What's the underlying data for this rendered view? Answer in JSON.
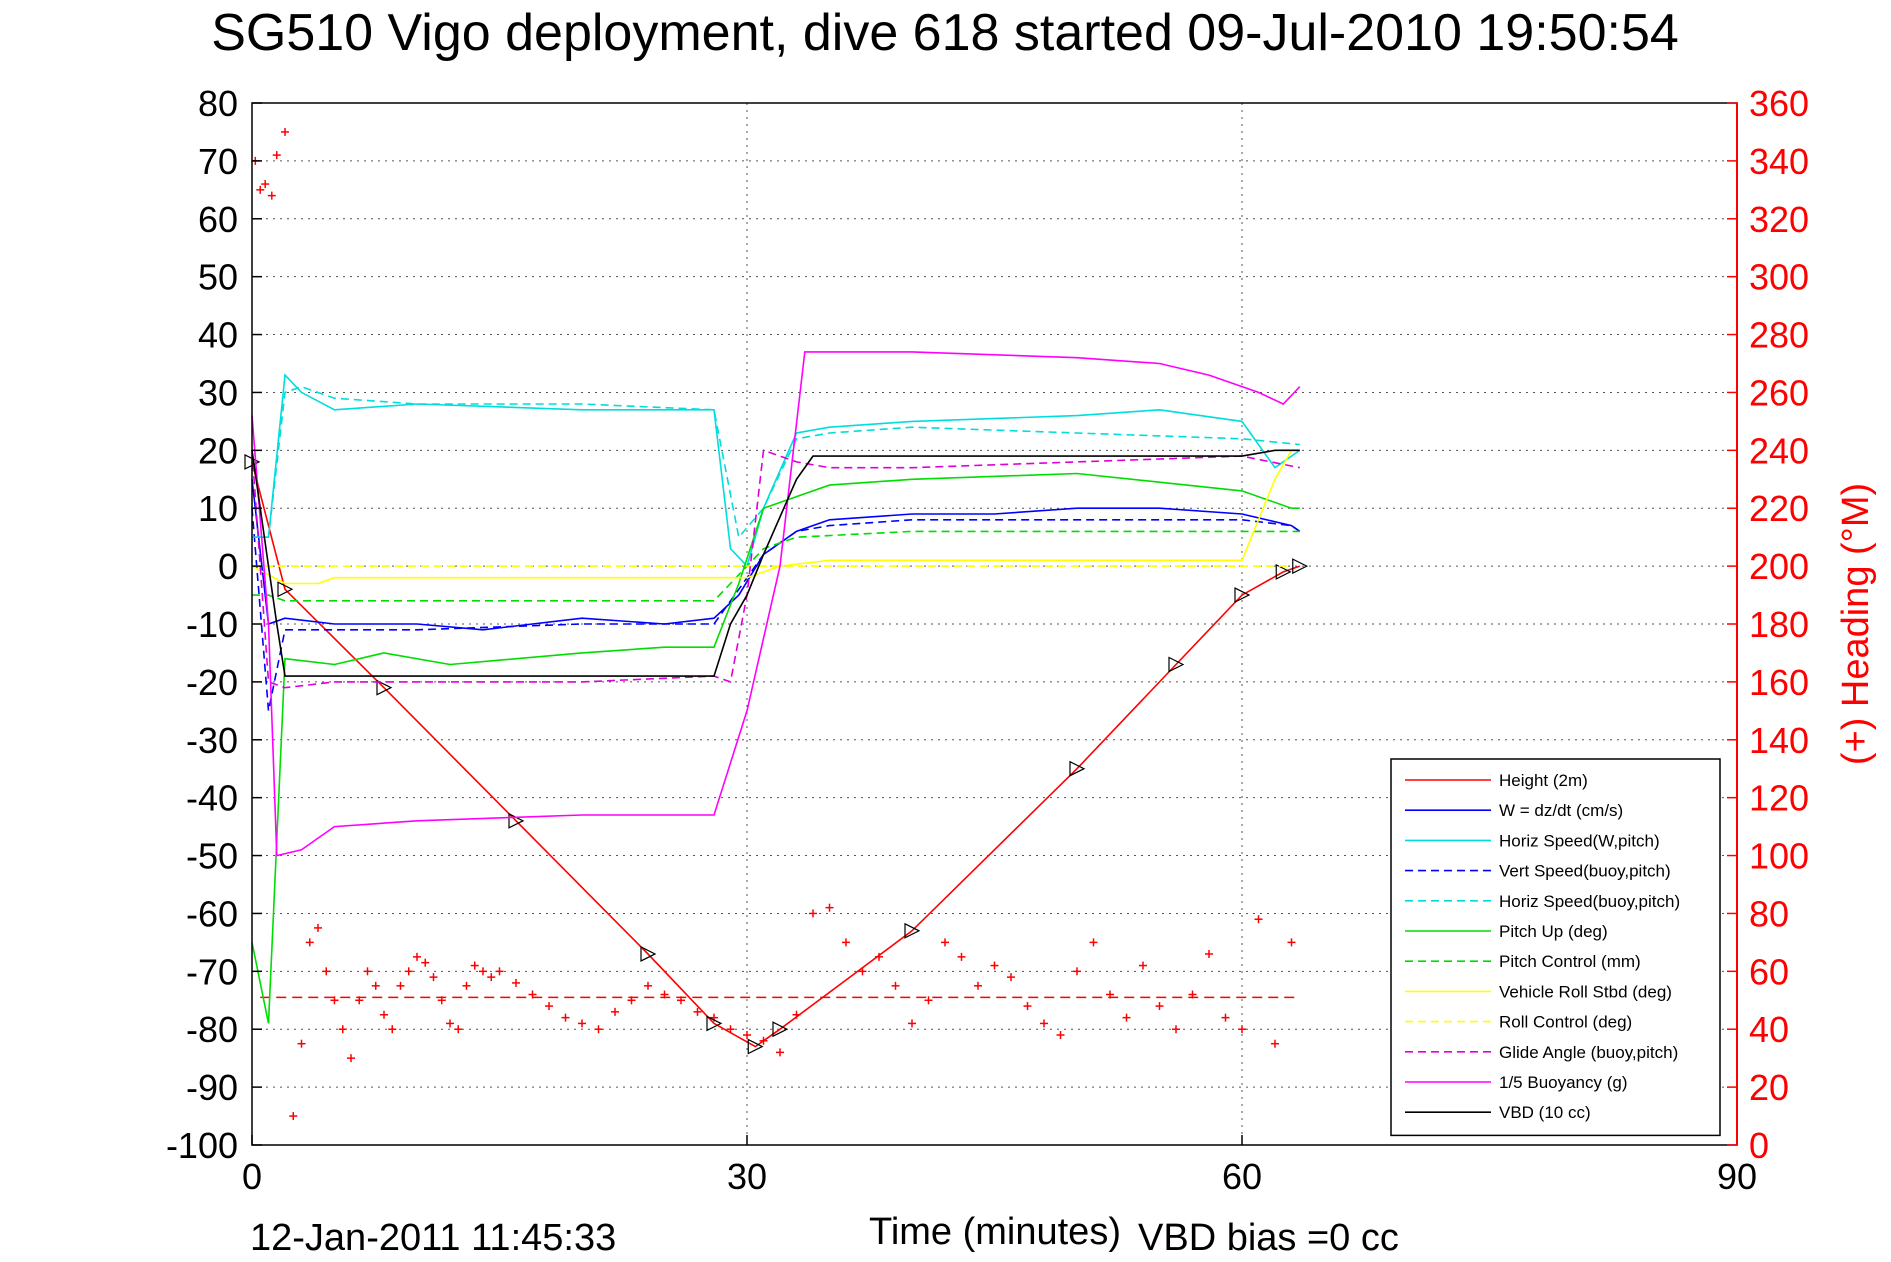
{
  "chart_data": {
    "type": "line",
    "title": "SG510 Vigo deployment, dive 618 started 09-Jul-2010 19:50:54",
    "xlabel": "Time (minutes)",
    "ylabel": "",
    "y2label": "(+) Heading (°M)",
    "xlim": [
      0,
      90
    ],
    "ylim": [
      -100,
      80
    ],
    "y2lim": [
      0,
      360
    ],
    "xticks": [
      "0",
      "30",
      "60",
      "90"
    ],
    "yticks": [
      "80",
      "70",
      "60",
      "50",
      "40",
      "30",
      "20",
      "10",
      "0",
      "-10",
      "-20",
      "-30",
      "-40",
      "-50",
      "-60",
      "-70",
      "-80",
      "-90",
      "-100"
    ],
    "y2ticks": [
      "360",
      "340",
      "320",
      "300",
      "280",
      "260",
      "240",
      "220",
      "200",
      "180",
      "160",
      "140",
      "120",
      "100",
      "80",
      "60",
      "40",
      "20",
      "0"
    ],
    "grid": true,
    "legend_position": "bottom-right",
    "footer_date": "12-Jan-2011 11:45:33",
    "footer_bias": "VBD bias =0 cc",
    "series": [
      {
        "name": "Height (2m)",
        "color": "#ff0000",
        "style": "solid",
        "x": [
          0,
          2,
          8,
          16,
          24,
          28,
          30.5,
          32,
          40,
          50,
          56,
          60,
          62.5,
          63.5
        ],
        "y": [
          18,
          -4,
          -21,
          -44,
          -67,
          -79,
          -83,
          -80,
          -63,
          -35,
          -17,
          -5,
          -1,
          0
        ]
      },
      {
        "name": "W = dz/dt (cm/s)",
        "color": "#0000ff",
        "style": "solid",
        "x": [
          0,
          1,
          2,
          5,
          10,
          14,
          20,
          25,
          28,
          29.5,
          31,
          33,
          35,
          40,
          45,
          50,
          55,
          60,
          63,
          63.5
        ],
        "y": [
          15,
          -10,
          -9,
          -10,
          -10,
          -11,
          -9,
          -10,
          -9,
          -5,
          2,
          6,
          8,
          9,
          9,
          10,
          10,
          9,
          7,
          6
        ]
      },
      {
        "name": "Horiz Speed(W,pitch)",
        "color": "#00dddd",
        "style": "solid",
        "x": [
          0,
          1,
          2,
          3,
          5,
          10,
          20,
          28,
          29,
          30,
          31,
          33,
          35,
          40,
          50,
          55,
          60,
          62,
          63.5
        ],
        "y": [
          5,
          5,
          33,
          30,
          27,
          28,
          27,
          27,
          3,
          0,
          10,
          23,
          24,
          25,
          26,
          27,
          25,
          17,
          20
        ]
      },
      {
        "name": "Vert Speed(buoy,pitch)",
        "color": "#0000ff",
        "style": "dashed",
        "x": [
          0,
          1,
          2,
          5,
          10,
          20,
          28,
          29.5,
          31,
          33,
          35,
          40,
          50,
          60,
          63,
          63.5
        ],
        "y": [
          10,
          -25,
          -11,
          -11,
          -11,
          -10,
          -10,
          -4,
          2,
          6,
          7,
          8,
          8,
          8,
          7,
          6
        ]
      },
      {
        "name": "Horiz Speed(buoy,pitch)",
        "color": "#00dddd",
        "style": "dashed",
        "x": [
          0,
          1,
          2,
          3,
          5,
          10,
          20,
          28,
          29.5,
          31,
          33,
          35,
          40,
          50,
          60,
          63.5
        ],
        "y": [
          5,
          5,
          30,
          31,
          29,
          28,
          28,
          27,
          5,
          10,
          22,
          23,
          24,
          23,
          22,
          21
        ]
      },
      {
        "name": "Pitch Up (deg)",
        "color": "#00dd00",
        "style": "solid",
        "x": [
          0,
          1,
          2,
          5,
          8,
          12,
          20,
          25,
          28,
          29.5,
          31,
          33,
          35,
          40,
          50,
          60,
          63,
          63.5
        ],
        "y": [
          -65,
          -79,
          -16,
          -17,
          -15,
          -17,
          -15,
          -14,
          -14,
          -3,
          10,
          12,
          14,
          15,
          16,
          13,
          10,
          10
        ]
      },
      {
        "name": "Pitch Control (mm)",
        "color": "#00dd00",
        "style": "dashed",
        "x": [
          0,
          1,
          2,
          5,
          10,
          20,
          28,
          29,
          30,
          31,
          33,
          40,
          50,
          60,
          63.5
        ],
        "y": [
          -5,
          -5,
          -6,
          -6,
          -6,
          -6,
          -6,
          -3,
          0,
          3,
          5,
          6,
          6,
          6,
          6
        ]
      },
      {
        "name": "Vehicle Roll Stbd (deg)",
        "color": "#ffff00",
        "style": "solid",
        "x": [
          0,
          2,
          3,
          4,
          5,
          20,
          28,
          30,
          32,
          35,
          45,
          50,
          55,
          60,
          62,
          63
        ],
        "y": [
          0,
          -3,
          -3,
          -3,
          -2,
          -2,
          -2,
          -2,
          0,
          1,
          1,
          1,
          1,
          1,
          15,
          20
        ]
      },
      {
        "name": "Roll Control (deg)",
        "color": "#ffff00",
        "style": "dashed",
        "x": [
          0,
          2,
          5,
          10,
          20,
          28,
          30,
          33,
          40,
          50,
          60,
          63
        ],
        "y": [
          0,
          0,
          0,
          0,
          0,
          0,
          0,
          0,
          0,
          0,
          0,
          0
        ]
      },
      {
        "name": "Glide Angle (buoy,pitch)",
        "color": "#dd00dd",
        "style": "dashed",
        "x": [
          0,
          1,
          2,
          5,
          10,
          20,
          28,
          29,
          30,
          31,
          33,
          35,
          40,
          50,
          60,
          63.5
        ],
        "y": [
          20,
          -20,
          -21,
          -20,
          -20,
          -20,
          -19,
          -20,
          -5,
          20,
          18,
          17,
          17,
          18,
          19,
          17
        ]
      },
      {
        "name": "1/5 Buoyancy (g)",
        "color": "#ff00ff",
        "style": "solid",
        "x": [
          0,
          1,
          1.5,
          3,
          5,
          10,
          20,
          28,
          30,
          32,
          33.5,
          40,
          50,
          55,
          58,
          61,
          62.5,
          63.5
        ],
        "y": [
          26,
          -10,
          -50,
          -49,
          -45,
          -44,
          -43,
          -43,
          -25,
          0,
          37,
          37,
          36,
          35,
          33,
          30,
          28,
          31
        ]
      },
      {
        "name": "VBD (10 cc)",
        "color": "#000000",
        "style": "solid",
        "x": [
          0,
          1,
          1.5,
          2,
          10,
          20,
          28,
          29,
          30,
          31,
          33,
          34,
          40,
          50,
          60,
          62,
          63.5
        ],
        "y": [
          20,
          0,
          -10,
          -19,
          -19,
          -19,
          -19,
          -10,
          -5,
          2,
          15,
          19,
          19,
          19,
          19,
          20,
          20
        ]
      }
    ],
    "heading_mean_deg": 51,
    "heading_samples": {
      "name": "(+) Heading",
      "color": "#ff0000",
      "x": [
        0.2,
        0.5,
        0.8,
        1.2,
        1.5,
        2.0,
        2.5,
        3.0,
        3.5,
        4.0,
        4.5,
        5.0,
        5.5,
        6.0,
        6.5,
        7.0,
        7.5,
        8.0,
        8.5,
        9.0,
        9.5,
        10.0,
        10.5,
        11.0,
        11.5,
        12.0,
        12.5,
        13.0,
        13.5,
        14.0,
        14.5,
        15.0,
        16.0,
        17.0,
        18.0,
        19.0,
        20.0,
        21.0,
        22.0,
        23.0,
        24.0,
        25.0,
        26.0,
        27.0,
        28.0,
        29.0,
        30.0,
        31.0,
        32.0,
        33.0,
        34.0,
        35.0,
        36.0,
        37.0,
        38.0,
        39.0,
        40.0,
        41.0,
        42.0,
        43.0,
        44.0,
        45.0,
        46.0,
        47.0,
        48.0,
        49.0,
        50.0,
        51.0,
        52.0,
        53.0,
        54.0,
        55.0,
        56.0,
        57.0,
        58.0,
        59.0,
        60.0,
        61.0,
        62.0,
        63.0
      ],
      "y": [
        340,
        330,
        332,
        328,
        342,
        350,
        10,
        35,
        70,
        75,
        60,
        50,
        40,
        30,
        50,
        60,
        55,
        45,
        40,
        55,
        60,
        65,
        63,
        58,
        50,
        42,
        40,
        55,
        62,
        60,
        58,
        60,
        56,
        52,
        48,
        44,
        42,
        40,
        46,
        50,
        55,
        52,
        50,
        46,
        44,
        40,
        38,
        36,
        32,
        45,
        80,
        82,
        70,
        60,
        65,
        55,
        42,
        50,
        70,
        65,
        55,
        62,
        58,
        48,
        42,
        38,
        60,
        70,
        52,
        44,
        62,
        48,
        40,
        52,
        66,
        44,
        40,
        78,
        35,
        70
      ]
    }
  }
}
